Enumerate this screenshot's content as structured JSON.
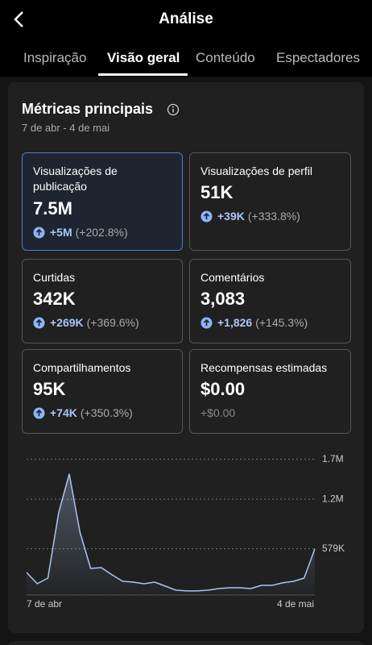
{
  "header": {
    "title": "Análise"
  },
  "tabs": {
    "items": [
      "Inspiração",
      "Visão geral",
      "Conteúdo",
      "Espectadores"
    ],
    "active": 1
  },
  "card": {
    "title": "Métricas principais",
    "date_range": "7 de abr - 4 de mai"
  },
  "metrics": [
    {
      "label": "Visualizações de publicação",
      "value": "7.5M",
      "change": "+5M",
      "percent": "(+202.8%)"
    },
    {
      "label": "Visualizações de perfil",
      "value": "51K",
      "change": "+39K",
      "percent": "(+333.8%)"
    },
    {
      "label": "Curtidas",
      "value": "342K",
      "change": "+269K",
      "percent": "(+369.6%)"
    },
    {
      "label": "Comentários",
      "value": "3,083",
      "change": "+1,826",
      "percent": "(+145.3%)"
    },
    {
      "label": "Compartilhamentos",
      "value": "95K",
      "change": "+74K",
      "percent": "(+350.3%)"
    },
    {
      "label": "Recompensas estimadas",
      "value": "$0.00",
      "change": "+$0.00"
    }
  ],
  "chart_data": {
    "type": "line",
    "x_labels": [
      "7 de abr",
      "4 de mai"
    ],
    "values": [
      283000,
      141000,
      212000,
      1030000,
      1515000,
      788000,
      333000,
      343000,
      253000,
      172000,
      162000,
      141000,
      162000,
      111000,
      61000,
      51000,
      51000,
      61000,
      81000,
      91000,
      91000,
      81000,
      121000,
      121000,
      152000,
      172000,
      212000,
      579000
    ],
    "color": "#a9c4f0",
    "ylim": [
      0,
      1737000
    ],
    "yticks": [
      {
        "value": 1700000,
        "label": "1.7M"
      },
      {
        "value": 1200000,
        "label": "1.2M"
      },
      {
        "value": 579000,
        "label": "579K"
      }
    ]
  }
}
